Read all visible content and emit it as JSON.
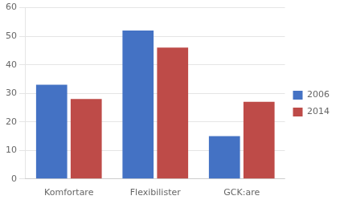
{
  "chart_data": {
    "type": "bar",
    "categories": [
      "Komfortare",
      "Flexibilister",
      "GCK:are"
    ],
    "series": [
      {
        "name": "2006",
        "color": "#4472C4",
        "values": [
          33,
          52,
          15
        ]
      },
      {
        "name": "2014",
        "color": "#BE4B48",
        "values": [
          28,
          46,
          27
        ]
      }
    ],
    "ylim": [
      0,
      60
    ],
    "yticks": [
      0,
      10,
      20,
      30,
      40,
      50,
      60
    ],
    "grid": true,
    "legend": "right"
  }
}
